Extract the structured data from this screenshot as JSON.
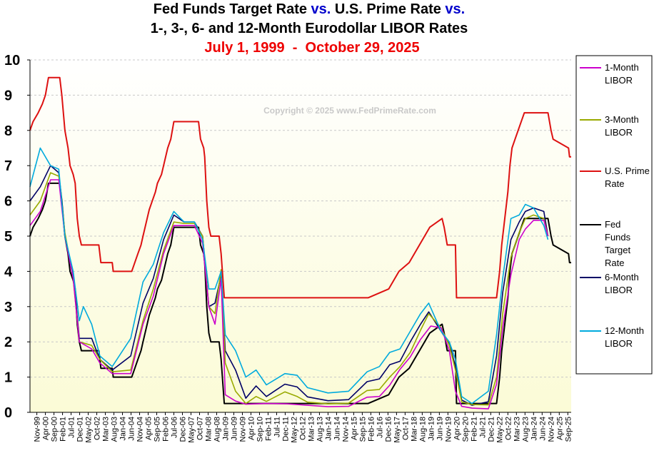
{
  "title": {
    "line1": {
      "a": "Fed Funds Target Rate ",
      "b": "vs.",
      "c": " U.S. Prime Rate ",
      "d": "vs."
    },
    "line2": "1-, 3-, 6- and 12-Month Eurodollar LIBOR Rates",
    "line3": "July 1, 1999  -  October 29, 2025"
  },
  "copyright": "Copyright © 2025 www.FedPrimeRate.com",
  "colors": {
    "title_accent": "#0000cc",
    "subtitle_red": "#ee0000",
    "prime": "#dd1111",
    "fed_funds": "#000000",
    "libor_1m": "#cc00cc",
    "libor_3m": "#99aa00",
    "libor_6m": "#000066",
    "libor_12m": "#00aadd",
    "plot_bg_top": "#ffffff",
    "plot_bg_bottom": "#fbfbd6"
  },
  "chart_data": {
    "type": "line",
    "ylim": [
      0,
      10
    ],
    "yticks": [
      "0",
      "1",
      "2",
      "3",
      "4",
      "5",
      "6",
      "7",
      "8",
      "9",
      "10"
    ],
    "xlim": [
      1999.5,
      2025.83
    ],
    "xtick_labels": [
      "Nov-99",
      "Apr-00",
      "Sep-00",
      "Feb-01",
      "Jul-01",
      "Dec-01",
      "May-02",
      "Oct-02",
      "Mar-03",
      "Aug-03",
      "Jan-04",
      "Jun-04",
      "Nov-04",
      "Apr-05",
      "Sep-05",
      "Feb-06",
      "Jul-06",
      "Dec-06",
      "May-07",
      "Oct-07",
      "Mar-08",
      "Aug-08",
      "Jan-09",
      "Jun-09",
      "Nov-09",
      "Apr-10",
      "Sep-10",
      "Feb-11",
      "Jul-11",
      "Dec-11",
      "May-12",
      "Oct-12",
      "Mar-13",
      "Aug-13",
      "Jan-14",
      "Jun-14",
      "Nov-14",
      "Apr-15",
      "Sep-15",
      "Feb-16",
      "Jul-16",
      "Dec-16",
      "May-17",
      "Oct-17",
      "Mar-18",
      "Aug-18",
      "Jan-19",
      "Jun-19",
      "Nov-19",
      "Apr-20",
      "Sep-20",
      "Feb-21",
      "Jul-21",
      "Dec-21",
      "May-22",
      "Oct-22",
      "Mar-23",
      "Aug-23",
      "Jan-24",
      "Jun-24",
      "Nov-24",
      "Apr-25",
      "Sep-25"
    ],
    "grid": "horizontal dashed",
    "legend_position": "right",
    "series": [
      {
        "name": "1-Month LIBOR",
        "legend": [
          "1-Month",
          "LIBOR"
        ],
        "color": "#cc00cc",
        "x": [
          1999.5,
          2000.0,
          2000.5,
          2000.9,
          2001.2,
          2001.6,
          2001.9,
          2002.5,
          2002.9,
          2003.5,
          2004.4,
          2005.0,
          2005.5,
          2006.0,
          2006.5,
          2007.0,
          2007.5,
          2007.9,
          2008.2,
          2008.5,
          2008.8,
          2009.0,
          2009.5,
          2010.0,
          2011.0,
          2012.0,
          2013.0,
          2014.0,
          2015.0,
          2015.9,
          2016.5,
          2017.0,
          2017.5,
          2018.0,
          2018.5,
          2019.0,
          2019.5,
          2019.9,
          2020.2,
          2020.5,
          2021.0,
          2021.8,
          2022.2,
          2022.5,
          2022.9,
          2023.3,
          2023.6,
          2024.0,
          2024.5,
          2024.7
        ],
        "y": [
          5.3,
          5.7,
          6.6,
          6.6,
          5.0,
          3.8,
          2.0,
          1.8,
          1.4,
          1.1,
          1.1,
          2.5,
          3.3,
          4.5,
          5.3,
          5.3,
          5.3,
          4.8,
          3.0,
          2.5,
          3.8,
          0.5,
          0.32,
          0.23,
          0.25,
          0.24,
          0.2,
          0.16,
          0.17,
          0.43,
          0.45,
          0.77,
          1.22,
          1.57,
          2.07,
          2.45,
          2.4,
          1.76,
          0.6,
          0.17,
          0.12,
          0.1,
          0.8,
          2.4,
          3.9,
          4.9,
          5.2,
          5.45,
          5.45,
          5.0
        ]
      },
      {
        "name": "3-Month LIBOR",
        "legend": [
          "3-Month",
          "LIBOR"
        ],
        "color": "#99aa00",
        "x": [
          1999.5,
          2000.0,
          2000.5,
          2000.9,
          2001.2,
          2001.6,
          2001.9,
          2002.5,
          2002.9,
          2003.5,
          2004.4,
          2005.0,
          2005.5,
          2006.0,
          2006.5,
          2007.0,
          2007.5,
          2007.9,
          2008.2,
          2008.5,
          2008.8,
          2009.0,
          2009.5,
          2010.0,
          2010.5,
          2011.0,
          2011.9,
          2012.5,
          2013.0,
          2014.0,
          2015.0,
          2015.9,
          2016.5,
          2017.0,
          2017.5,
          2018.0,
          2018.5,
          2018.9,
          2019.5,
          2019.9,
          2020.2,
          2020.5,
          2021.0,
          2021.8,
          2022.2,
          2022.5,
          2022.9,
          2023.3,
          2023.6,
          2024.0,
          2024.5,
          2024.7
        ],
        "y": [
          5.6,
          6.0,
          6.8,
          6.7,
          5.1,
          3.8,
          2.0,
          1.9,
          1.5,
          1.15,
          1.2,
          2.6,
          3.5,
          4.6,
          5.4,
          5.36,
          5.36,
          5.0,
          3.0,
          2.8,
          4.05,
          1.4,
          0.6,
          0.25,
          0.45,
          0.31,
          0.58,
          0.45,
          0.29,
          0.24,
          0.26,
          0.62,
          0.65,
          1.0,
          1.3,
          1.7,
          2.33,
          2.8,
          2.4,
          1.9,
          1.2,
          0.3,
          0.22,
          0.21,
          1.0,
          2.8,
          4.4,
          5.1,
          5.5,
          5.6,
          5.5,
          5.0
        ]
      },
      {
        "name": "U.S. Prime Rate",
        "legend": [
          "U.S. Prime",
          "Rate"
        ],
        "color": "#dd1111",
        "end": 2025.83,
        "x": [
          1999.5,
          1999.65,
          1999.9,
          2000.1,
          2000.25,
          2000.4,
          2000.5,
          2000.95,
          2001.05,
          2001.2,
          2001.35,
          2001.45,
          2001.6,
          2001.7,
          2001.8,
          2001.9,
          2002.0,
          2002.85,
          2002.95,
          2003.5,
          2003.55,
          2004.45,
          2004.6,
          2004.75,
          2004.9,
          2005.0,
          2005.2,
          2005.3,
          2005.45,
          2005.6,
          2005.7,
          2005.9,
          2006.0,
          2006.2,
          2006.35,
          2006.5,
          2007.7,
          2007.8,
          2007.95,
          2008.0,
          2008.1,
          2008.2,
          2008.3,
          2008.7,
          2008.8,
          2008.95,
          2015.95,
          2016.95,
          2017.2,
          2017.45,
          2017.95,
          2018.2,
          2018.45,
          2018.7,
          2018.95,
          2019.55,
          2019.65,
          2019.8,
          2020.2,
          2020.25,
          2022.2,
          2022.35,
          2022.45,
          2022.6,
          2022.75,
          2022.85,
          2022.95,
          2023.1,
          2023.25,
          2023.55,
          2024.7,
          2024.85,
          2024.95,
          2025.7,
          2025.75
        ],
        "y": [
          8.0,
          8.25,
          8.5,
          8.75,
          9.0,
          9.5,
          9.5,
          9.5,
          9.0,
          8.0,
          7.5,
          7.0,
          6.75,
          6.5,
          5.5,
          5.0,
          4.75,
          4.75,
          4.25,
          4.25,
          4.0,
          4.0,
          4.25,
          4.5,
          4.75,
          5.0,
          5.5,
          5.75,
          6.0,
          6.25,
          6.5,
          6.75,
          7.0,
          7.5,
          7.75,
          8.25,
          8.25,
          7.75,
          7.5,
          7.25,
          6.0,
          5.25,
          5.0,
          5.0,
          4.5,
          3.25,
          3.25,
          3.5,
          3.75,
          4.0,
          4.25,
          4.5,
          4.75,
          5.0,
          5.25,
          5.5,
          5.25,
          4.75,
          4.75,
          3.25,
          3.25,
          4.0,
          4.75,
          5.5,
          6.25,
          7.0,
          7.5,
          7.75,
          8.0,
          8.5,
          8.5,
          8.0,
          7.75,
          7.5,
          7.25
        ]
      },
      {
        "name": "Fed Funds Target Rate",
        "legend": [
          "Fed",
          "Funds",
          "Target",
          "Rate"
        ],
        "color": "#000000",
        "end": 2025.83,
        "x": [
          1999.5,
          1999.65,
          1999.9,
          2000.1,
          2000.25,
          2000.4,
          2000.5,
          2000.95,
          2001.05,
          2001.2,
          2001.35,
          2001.45,
          2001.6,
          2001.7,
          2001.8,
          2001.9,
          2002.0,
          2002.85,
          2002.95,
          2003.5,
          2003.55,
          2004.45,
          2004.6,
          2004.75,
          2004.9,
          2005.0,
          2005.2,
          2005.3,
          2005.45,
          2005.6,
          2005.7,
          2005.9,
          2006.0,
          2006.2,
          2006.35,
          2006.5,
          2007.7,
          2007.8,
          2007.95,
          2008.0,
          2008.1,
          2008.2,
          2008.3,
          2008.7,
          2008.8,
          2008.95,
          2015.95,
          2016.95,
          2017.2,
          2017.45,
          2017.95,
          2018.2,
          2018.45,
          2018.7,
          2018.95,
          2019.55,
          2019.65,
          2019.8,
          2020.2,
          2020.25,
          2022.2,
          2022.35,
          2022.45,
          2022.6,
          2022.75,
          2022.85,
          2022.95,
          2023.1,
          2023.25,
          2023.55,
          2024.7,
          2024.85,
          2024.95,
          2025.7,
          2025.75
        ],
        "y": [
          5.0,
          5.25,
          5.5,
          5.75,
          6.0,
          6.5,
          6.5,
          6.5,
          6.0,
          5.0,
          4.5,
          4.0,
          3.75,
          3.5,
          2.5,
          2.0,
          1.75,
          1.75,
          1.25,
          1.25,
          1.0,
          1.0,
          1.25,
          1.5,
          1.75,
          2.0,
          2.5,
          2.75,
          3.0,
          3.25,
          3.5,
          3.75,
          4.0,
          4.5,
          4.75,
          5.25,
          5.25,
          4.75,
          4.5,
          4.25,
          3.0,
          2.25,
          2.0,
          2.0,
          1.5,
          0.25,
          0.25,
          0.5,
          0.75,
          1.0,
          1.25,
          1.5,
          1.75,
          2.0,
          2.25,
          2.5,
          2.25,
          1.75,
          1.75,
          0.25,
          0.25,
          1.0,
          1.75,
          2.5,
          3.25,
          4.0,
          4.5,
          4.75,
          5.0,
          5.5,
          5.5,
          5.0,
          4.75,
          4.5,
          4.25
        ]
      },
      {
        "name": "6-Month LIBOR",
        "legend": [
          "6-Month",
          "LIBOR"
        ],
        "color": "#000066",
        "x": [
          1999.5,
          2000.0,
          2000.5,
          2000.9,
          2001.2,
          2001.6,
          2001.9,
          2002.5,
          2002.9,
          2003.5,
          2004.4,
          2005.0,
          2005.5,
          2006.0,
          2006.5,
          2007.0,
          2007.5,
          2007.9,
          2008.2,
          2008.5,
          2008.8,
          2009.0,
          2009.5,
          2010.0,
          2010.5,
          2011.0,
          2011.9,
          2012.5,
          2013.0,
          2014.0,
          2015.0,
          2015.9,
          2016.5,
          2017.0,
          2017.5,
          2018.0,
          2018.5,
          2018.9,
          2019.5,
          2019.9,
          2020.2,
          2020.5,
          2021.0,
          2021.8,
          2022.2,
          2022.5,
          2022.9,
          2023.3,
          2023.6,
          2024.0,
          2024.5,
          2024.7
        ],
        "y": [
          6.0,
          6.4,
          7.0,
          6.8,
          5.0,
          3.9,
          2.1,
          2.1,
          1.5,
          1.2,
          1.6,
          3.1,
          3.8,
          4.9,
          5.6,
          5.4,
          5.4,
          5.0,
          3.0,
          3.1,
          3.9,
          1.75,
          1.2,
          0.4,
          0.75,
          0.45,
          0.8,
          0.72,
          0.44,
          0.33,
          0.36,
          0.87,
          0.95,
          1.35,
          1.45,
          2.0,
          2.5,
          2.85,
          2.3,
          1.95,
          1.3,
          0.35,
          0.2,
          0.3,
          1.6,
          3.4,
          4.9,
          5.4,
          5.7,
          5.8,
          5.7,
          5.0
        ]
      },
      {
        "name": "12-Month LIBOR",
        "legend": [
          "12-Month",
          "LIBOR"
        ],
        "color": "#00aadd",
        "x": [
          1999.5,
          2000.0,
          2000.5,
          2000.9,
          2001.2,
          2001.6,
          2001.9,
          2002.1,
          2002.5,
          2002.9,
          2003.5,
          2004.4,
          2005.0,
          2005.5,
          2006.0,
          2006.5,
          2007.0,
          2007.5,
          2007.9,
          2008.2,
          2008.5,
          2008.8,
          2009.0,
          2009.5,
          2010.0,
          2010.5,
          2011.0,
          2011.9,
          2012.5,
          2013.0,
          2014.0,
          2015.0,
          2015.9,
          2016.5,
          2017.0,
          2017.5,
          2018.0,
          2018.5,
          2018.9,
          2019.5,
          2019.9,
          2020.2,
          2020.5,
          2021.0,
          2021.8,
          2022.2,
          2022.5,
          2022.9,
          2023.3,
          2023.6,
          2024.0,
          2024.5,
          2024.7
        ],
        "y": [
          6.4,
          7.5,
          7.0,
          6.9,
          5.0,
          4.0,
          2.6,
          3.0,
          2.5,
          1.6,
          1.3,
          2.1,
          3.7,
          4.2,
          5.1,
          5.7,
          5.4,
          5.4,
          4.9,
          3.5,
          3.5,
          4.0,
          2.2,
          1.75,
          1.0,
          1.2,
          0.78,
          1.1,
          1.05,
          0.7,
          0.55,
          0.6,
          1.15,
          1.3,
          1.7,
          1.8,
          2.3,
          2.8,
          3.1,
          2.3,
          2.0,
          1.5,
          0.45,
          0.25,
          0.6,
          2.2,
          3.8,
          5.5,
          5.6,
          5.9,
          5.8,
          5.3,
          4.9
        ]
      }
    ]
  }
}
